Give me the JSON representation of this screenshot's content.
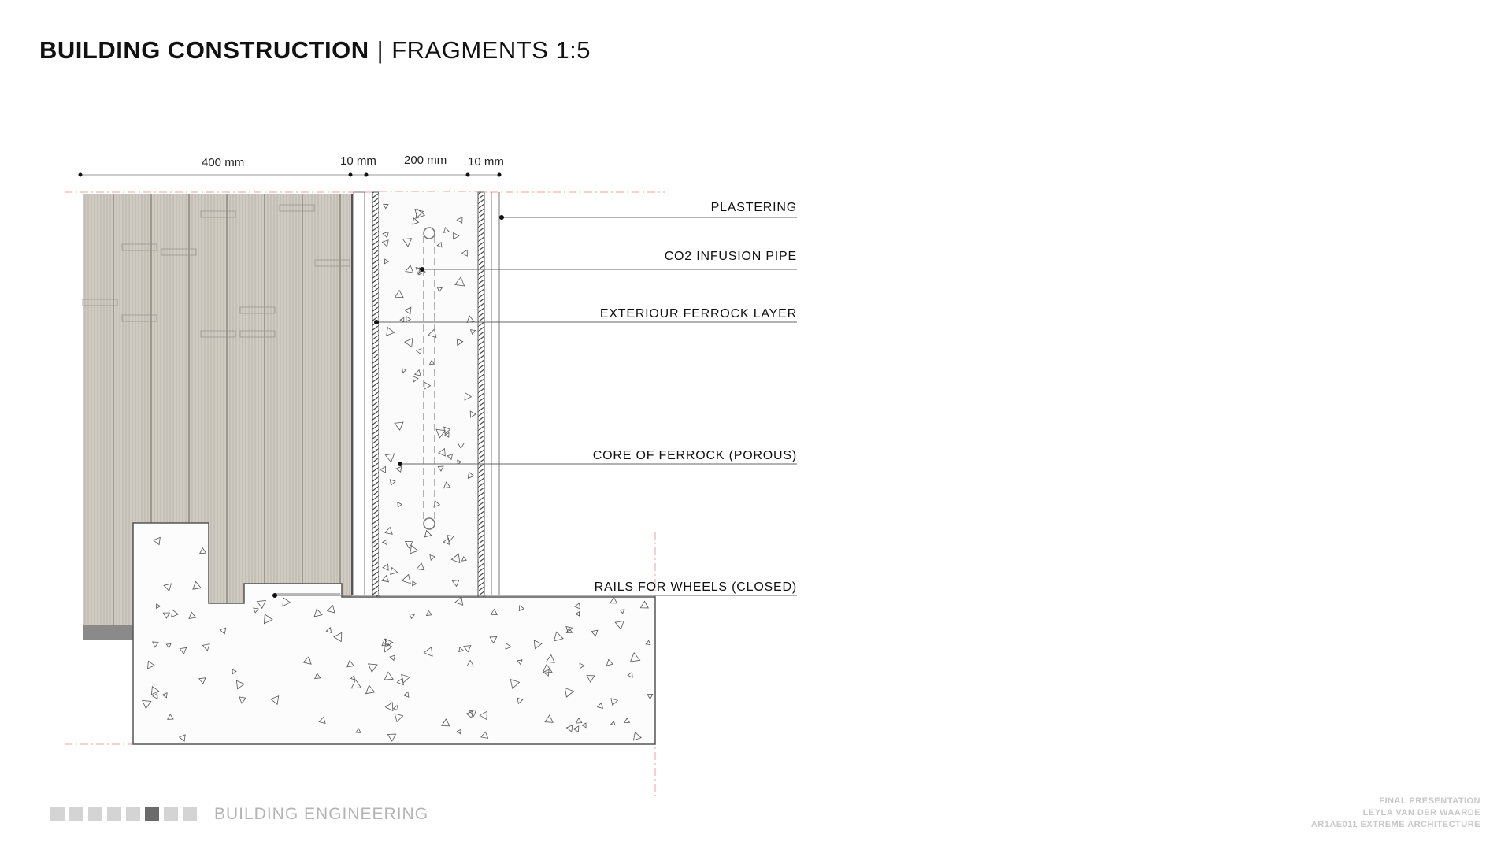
{
  "header": {
    "title_main": "BUILDING CONSTRUCTION",
    "separator": "|",
    "title_sub": "FRAGMENTS 1:5"
  },
  "diagram": {
    "dimensions": [
      "400 mm",
      "10 mm",
      "200 mm",
      "10 mm"
    ],
    "callouts": [
      "PLASTERING",
      "CO2 INFUSION PIPE",
      "EXTERIOUR FERROCK LAYER",
      "CORE OF FERROCK (POROUS)",
      "RAILS FOR WHEELS (CLOSED)"
    ]
  },
  "footer": {
    "progress": {
      "total": 8,
      "active_index": 5
    },
    "section": "BUILDING ENGINEERING",
    "credits": [
      "FINAL PRESENTATION",
      "LEYLA VAN DER WAARDE",
      "AR1AE011 EXTREME ARCHITECTURE"
    ]
  },
  "colors": {
    "wood_fill": "#cfcbc2",
    "wood_line": "#8f8b84",
    "guide_line": "#e8a0a0",
    "concrete_edge": "#555555",
    "leader": "#555555"
  }
}
